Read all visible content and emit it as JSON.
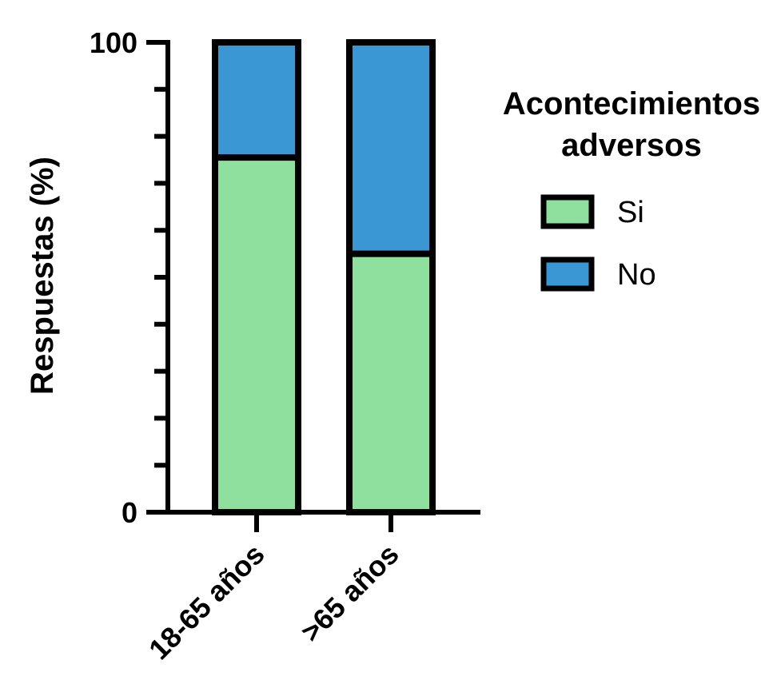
{
  "chart_data": {
    "type": "bar",
    "stacked": true,
    "categories": [
      "18-65 años",
      ">65 años"
    ],
    "series": [
      {
        "name": "Si",
        "values": [
          75.5,
          55
        ],
        "color": "#8fdf9f"
      },
      {
        "name": "No",
        "values": [
          24.5,
          45
        ],
        "color": "#3a97d3"
      }
    ],
    "ylabel": "Respuestas (%)",
    "ylim": [
      0,
      100
    ],
    "ytick_labels": [
      "0",
      "100"
    ],
    "minor_ticks": 10,
    "legend": {
      "title_lines": [
        "Acontecimientos",
        "adversos"
      ],
      "placement": "right",
      "entries": [
        "Si",
        "No"
      ]
    },
    "grid": false,
    "outline_color": "#000000"
  }
}
